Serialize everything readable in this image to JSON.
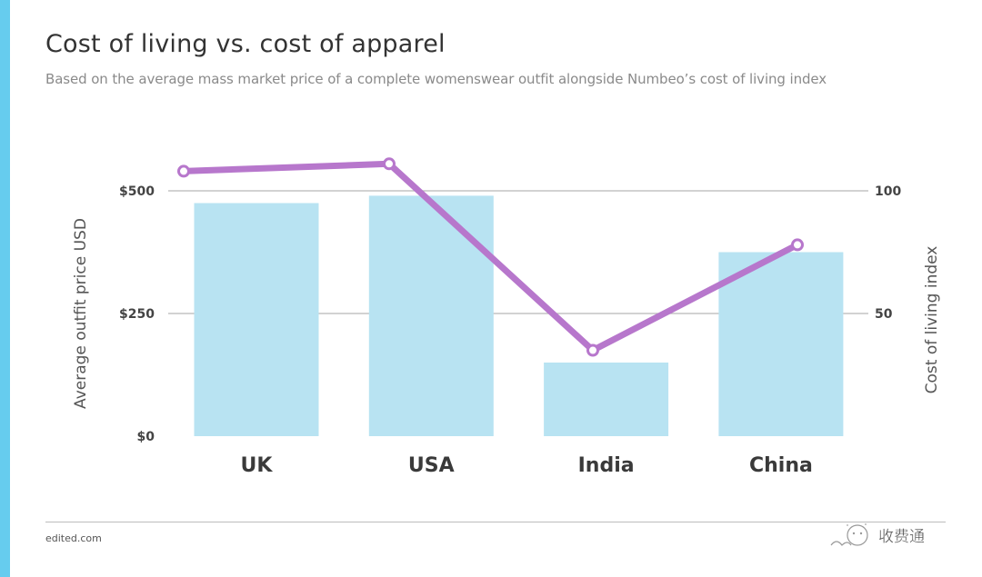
{
  "title": "Cost of living vs. cost of apparel",
  "subtitle": "Based on the average mass market price of a complete womenswear outfit alongside Numbeo’s cost of living index",
  "footer": {
    "source": "edited.com",
    "watermark_text": "收费通"
  },
  "colors": {
    "side_bar": "#66ccee",
    "bars": "#b8e3f2",
    "line": "#b777cc",
    "grid": "#b8b8b8"
  },
  "chart_data": {
    "type": "bar",
    "title": "Cost of living vs. cost of apparel",
    "subtitle": "Based on the average mass market price of a complete womenswear outfit alongside Numbeo’s cost of living index",
    "categories": [
      "UK",
      "USA",
      "India",
      "China"
    ],
    "series": [
      {
        "name": "Average outfit price USD",
        "type": "bar",
        "axis": "left",
        "values": [
          475,
          490,
          150,
          375
        ]
      },
      {
        "name": "Cost of living index",
        "type": "line",
        "axis": "right",
        "values": [
          108,
          111,
          35,
          78
        ]
      }
    ],
    "ylabel": "Average outfit price USD",
    "ylabel_right": "Cost of living index",
    "ylim": [
      0,
      500
    ],
    "ylim_right": [
      0,
      100
    ],
    "yticks": [
      0,
      250,
      500
    ],
    "ytick_labels": [
      "$0",
      "$250",
      "$500"
    ],
    "yticks_right": [
      50,
      100
    ],
    "ytick_labels_right": [
      "50",
      "100"
    ],
    "grid": true,
    "legend": "none"
  }
}
